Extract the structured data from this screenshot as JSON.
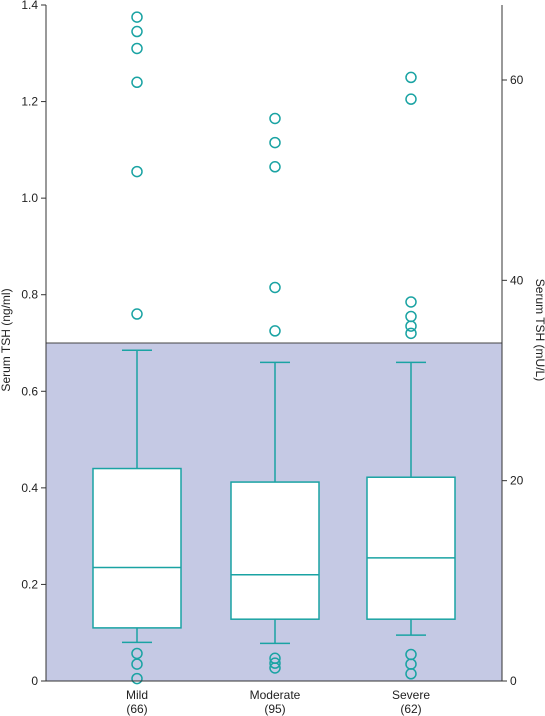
{
  "chart_data": {
    "type": "box",
    "ylabel_left": "Serum TSH (ng/ml)",
    "ylabel_right": "Serum TSH (mU/L)",
    "ylim_left": [
      0,
      1.4
    ],
    "y_ticks_left": [
      "0",
      "0.2",
      "0.4",
      "0.6",
      "0.8",
      "1.0",
      "1.2",
      "1.4"
    ],
    "y_tick_values_left": [
      0,
      0.2,
      0.4,
      0.6,
      0.8,
      1.0,
      1.2,
      1.4
    ],
    "y_ticks_right": [
      "0",
      "20",
      "40",
      "60"
    ],
    "y_tick_values_right": [
      0,
      20,
      40,
      60
    ],
    "ylim_right": [
      0,
      64
    ],
    "shaded_region": [
      0,
      0.7
    ],
    "colors": {
      "box": "#1aa3a3",
      "shade": "#c5c9e4",
      "axis": "#333333"
    },
    "groups": [
      {
        "label": "Mild",
        "n": "(66)",
        "whisker_low": 0.08,
        "q1": 0.11,
        "median": 0.235,
        "q3": 0.44,
        "whisker_high": 0.685,
        "outliers": [
          0.005,
          0.035,
          0.057,
          0.76,
          1.055,
          1.24,
          1.31,
          1.345,
          1.375
        ]
      },
      {
        "label": "Moderate",
        "n": "(95)",
        "whisker_low": 0.078,
        "q1": 0.128,
        "median": 0.22,
        "q3": 0.412,
        "whisker_high": 0.66,
        "outliers": [
          0.027,
          0.037,
          0.047,
          0.725,
          0.815,
          1.065,
          1.115,
          1.165
        ]
      },
      {
        "label": "Severe",
        "n": "(62)",
        "whisker_low": 0.095,
        "q1": 0.128,
        "median": 0.255,
        "q3": 0.422,
        "whisker_high": 0.66,
        "outliers": [
          0.015,
          0.035,
          0.055,
          0.72,
          0.735,
          0.755,
          0.785,
          1.205,
          1.25
        ]
      }
    ]
  }
}
